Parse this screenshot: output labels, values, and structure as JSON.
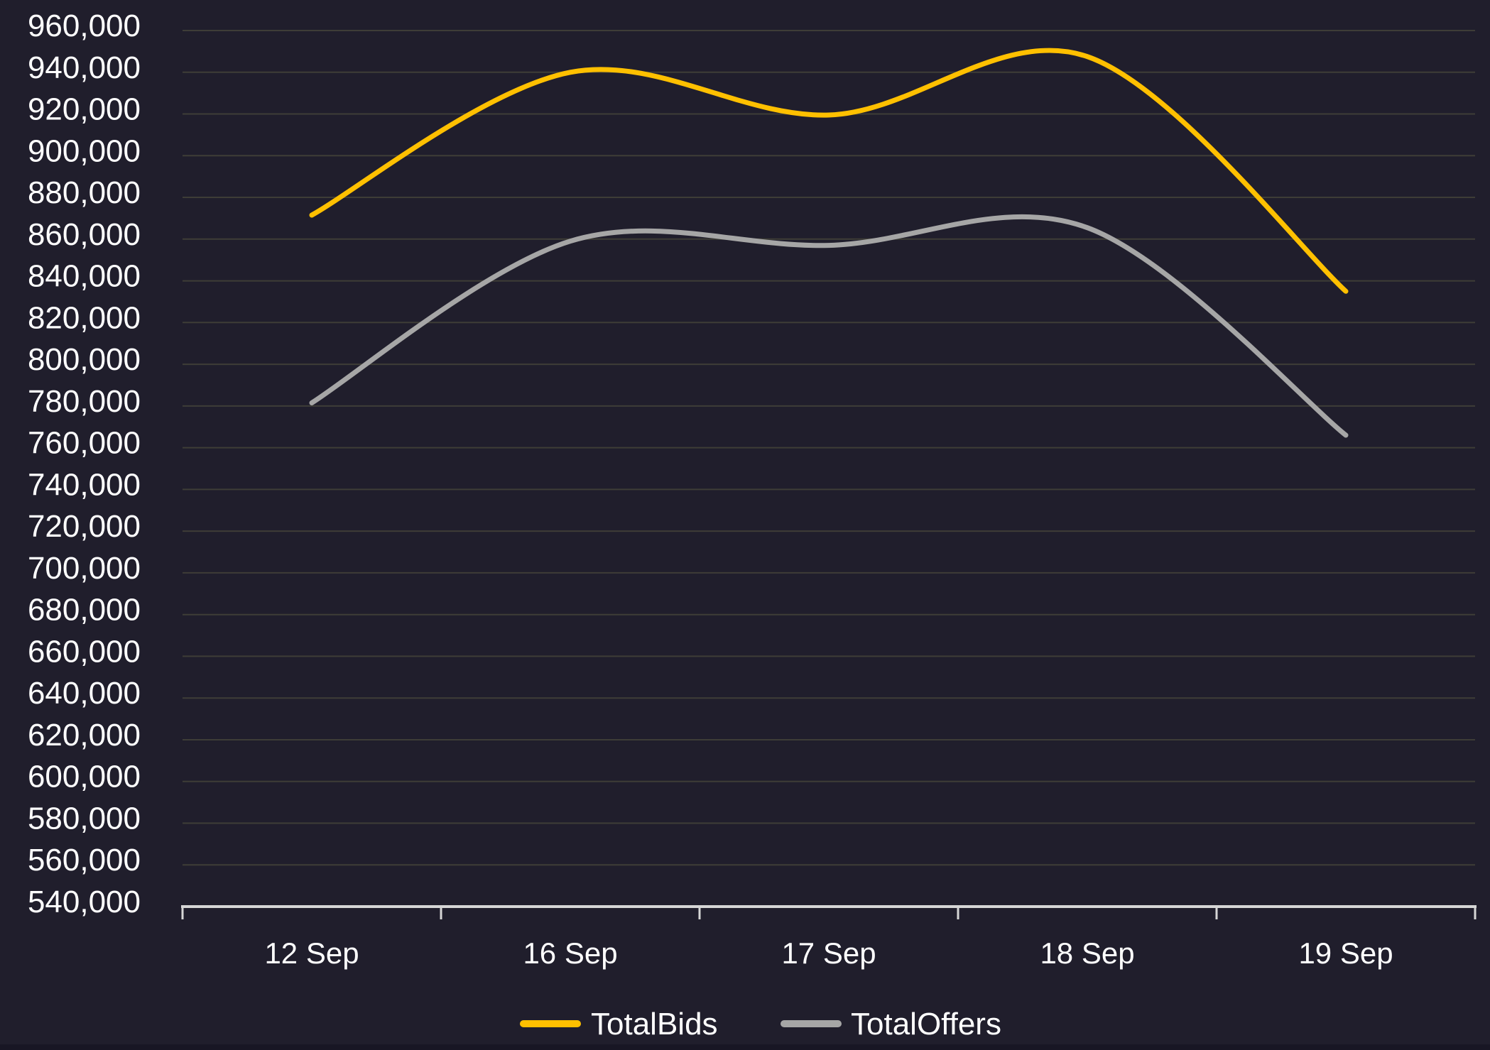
{
  "chart_data": {
    "type": "line",
    "smooth": true,
    "grid": true,
    "legend_position": "bottom",
    "title": "",
    "xlabel": "",
    "ylabel": "",
    "categories": [
      "12 Sep",
      "16 Sep",
      "17 Sep",
      "18 Sep",
      "19 Sep"
    ],
    "series": [
      {
        "name": "TotalBids",
        "color": "#FFC000",
        "values": [
          871500,
          940000,
          919500,
          947500,
          835000
        ]
      },
      {
        "name": "TotalOffers",
        "color": "#A6A6A6",
        "values": [
          781500,
          859000,
          857000,
          865500,
          766000
        ]
      }
    ],
    "y_axis": {
      "min": 540000,
      "max": 960000,
      "step": 20000,
      "tick_labels": [
        "960,000",
        "940,000",
        "920,000",
        "900,000",
        "880,000",
        "860,000",
        "840,000",
        "820,000",
        "800,000",
        "780,000",
        "760,000",
        "740,000",
        "720,000",
        "700,000",
        "680,000",
        "660,000",
        "640,000",
        "620,000",
        "600,000",
        "580,000",
        "560,000",
        "540,000"
      ]
    }
  },
  "colors": {
    "background": "#201E2C",
    "gridline": "#3E3D37",
    "axis": "#D6D6D6",
    "text": "#FFFFFF",
    "bottom_strip": "#181624"
  }
}
